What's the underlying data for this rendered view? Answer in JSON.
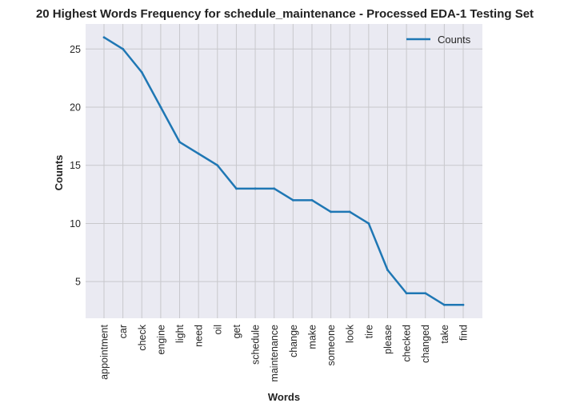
{
  "chart_data": {
    "type": "line",
    "title": "20 Highest Words Frequency for schedule_maintenance - Processed EDA-1 Testing Set",
    "xlabel": "Words",
    "ylabel": "Counts",
    "categories": [
      "appointment",
      "car",
      "check",
      "engine",
      "light",
      "need",
      "oil",
      "get",
      "schedule",
      "maintenance",
      "change",
      "make",
      "someone",
      "look",
      "tire",
      "please",
      "checked",
      "changed",
      "take",
      "find"
    ],
    "series": [
      {
        "name": "Counts",
        "values": [
          26,
          25,
          23,
          20,
          17,
          16,
          15,
          13,
          13,
          13,
          12,
          12,
          11,
          11,
          10,
          6,
          4,
          4,
          3,
          3
        ],
        "color": "#1f77b4"
      }
    ],
    "yticks": [
      5,
      10,
      15,
      20,
      25
    ],
    "ylim": [
      1.85,
      27.15
    ],
    "grid": true,
    "legend_position": "top-right",
    "background": "#eaeaf2"
  }
}
